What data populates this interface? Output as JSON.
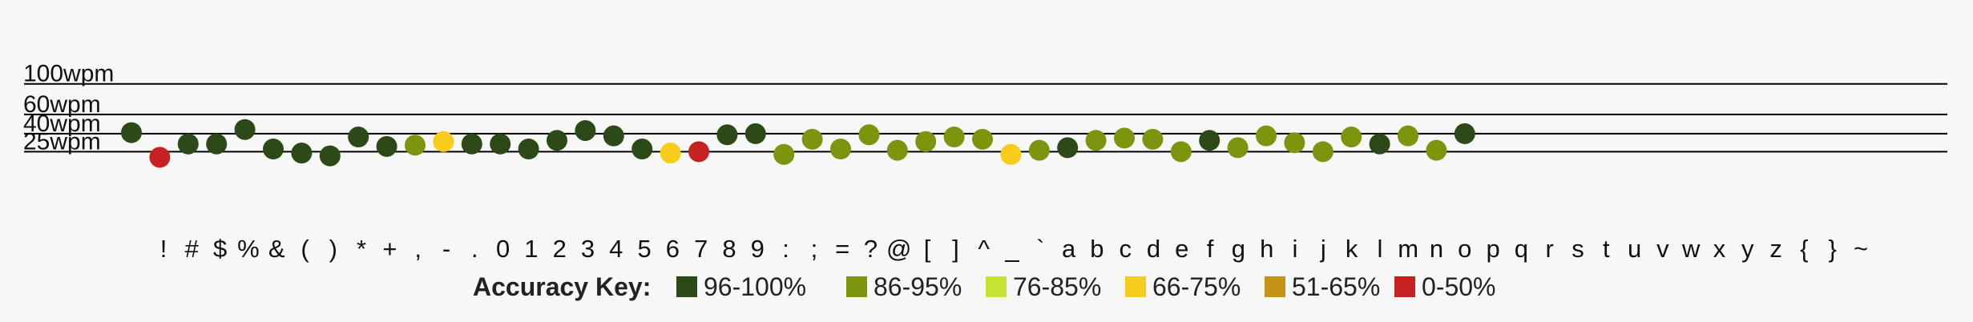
{
  "chart_data": {
    "type": "scatter",
    "title": "",
    "xlabel": "",
    "ylabel": "",
    "grid": true,
    "y_reference_lines": [
      {
        "value": 25,
        "label": "25wpm"
      },
      {
        "value": 40,
        "label": "40wpm"
      },
      {
        "value": 60,
        "label": "60wpm"
      },
      {
        "value": 100,
        "label": "100wpm"
      }
    ],
    "points": [
      {
        "char": "!",
        "wpm": 41,
        "accuracy_band": "96-100%"
      },
      {
        "char": "#",
        "wpm": 21,
        "accuracy_band": "0-50%"
      },
      {
        "char": "$",
        "wpm": 31,
        "accuracy_band": "96-100%"
      },
      {
        "char": "%",
        "wpm": 31,
        "accuracy_band": "96-100%"
      },
      {
        "char": "&",
        "wpm": 44,
        "accuracy_band": "96-100%"
      },
      {
        "char": "(",
        "wpm": 27,
        "accuracy_band": "96-100%"
      },
      {
        "char": ")",
        "wpm": 24,
        "accuracy_band": "96-100%"
      },
      {
        "char": "*",
        "wpm": 22,
        "accuracy_band": "96-100%"
      },
      {
        "char": "+",
        "wpm": 37,
        "accuracy_band": "96-100%"
      },
      {
        "char": ",",
        "wpm": 29,
        "accuracy_band": "96-100%"
      },
      {
        "char": "-",
        "wpm": 30,
        "accuracy_band": "86-95%"
      },
      {
        "char": ".",
        "wpm": 33,
        "accuracy_band": "66-75%"
      },
      {
        "char": "0",
        "wpm": 31,
        "accuracy_band": "96-100%"
      },
      {
        "char": "1",
        "wpm": 31,
        "accuracy_band": "96-100%"
      },
      {
        "char": "2",
        "wpm": 27,
        "accuracy_band": "96-100%"
      },
      {
        "char": "3",
        "wpm": 34,
        "accuracy_band": "96-100%"
      },
      {
        "char": "4",
        "wpm": 43,
        "accuracy_band": "96-100%"
      },
      {
        "char": "5",
        "wpm": 38,
        "accuracy_band": "96-100%"
      },
      {
        "char": "6",
        "wpm": 27,
        "accuracy_band": "96-100%"
      },
      {
        "char": "7",
        "wpm": 24,
        "accuracy_band": "66-75%"
      },
      {
        "char": "8",
        "wpm": 25,
        "accuracy_band": "0-50%"
      },
      {
        "char": "9",
        "wpm": 39,
        "accuracy_band": "96-100%"
      },
      {
        "char": ":",
        "wpm": 40,
        "accuracy_band": "96-100%"
      },
      {
        "char": ";",
        "wpm": 23,
        "accuracy_band": "86-95%"
      },
      {
        "char": "=",
        "wpm": 35,
        "accuracy_band": "86-95%"
      },
      {
        "char": "?",
        "wpm": 27,
        "accuracy_band": "86-95%"
      },
      {
        "char": "@",
        "wpm": 39,
        "accuracy_band": "86-95%"
      },
      {
        "char": "[",
        "wpm": 26,
        "accuracy_band": "86-95%"
      },
      {
        "char": "]",
        "wpm": 33,
        "accuracy_band": "86-95%"
      },
      {
        "char": "^",
        "wpm": 37,
        "accuracy_band": "86-95%"
      },
      {
        "char": "_",
        "wpm": 35,
        "accuracy_band": "86-95%"
      },
      {
        "char": "`",
        "wpm": 23,
        "accuracy_band": "66-75%"
      },
      {
        "char": "a",
        "wpm": 26,
        "accuracy_band": "86-95%"
      },
      {
        "char": "b",
        "wpm": 28,
        "accuracy_band": "96-100%"
      },
      {
        "char": "c",
        "wpm": 34,
        "accuracy_band": "86-95%"
      },
      {
        "char": "d",
        "wpm": 36,
        "accuracy_band": "86-95%"
      },
      {
        "char": "e",
        "wpm": 35,
        "accuracy_band": "86-95%"
      },
      {
        "char": "f",
        "wpm": 25,
        "accuracy_band": "86-95%"
      },
      {
        "char": "g",
        "wpm": 34,
        "accuracy_band": "96-100%"
      },
      {
        "char": "h",
        "wpm": 28,
        "accuracy_band": "86-95%"
      },
      {
        "char": "i",
        "wpm": 38,
        "accuracy_band": "86-95%"
      },
      {
        "char": "j",
        "wpm": 32,
        "accuracy_band": "86-95%"
      },
      {
        "char": "k",
        "wpm": 25,
        "accuracy_band": "86-95%"
      },
      {
        "char": "l",
        "wpm": 37,
        "accuracy_band": "86-95%"
      },
      {
        "char": "m",
        "wpm": 31,
        "accuracy_band": "96-100%"
      },
      {
        "char": "n",
        "wpm": 38,
        "accuracy_band": "86-95%"
      },
      {
        "char": "o",
        "wpm": 26,
        "accuracy_band": "86-95%"
      },
      {
        "char": "p",
        "wpm": 40,
        "accuracy_band": "96-100%"
      }
    ],
    "x_tick_labels": [
      "!",
      "#",
      "$",
      "%",
      "&",
      "(",
      ")",
      "*",
      "+",
      ",",
      "-",
      ".",
      "0",
      "1",
      "2",
      "3",
      "4",
      "5",
      "6",
      "7",
      "8",
      "9",
      ":",
      ";",
      "=",
      "?",
      "@",
      "[",
      "]",
      "^",
      "_",
      "`",
      "a",
      "b",
      "c",
      "d",
      "e",
      "f",
      "g",
      "h",
      "i",
      "j",
      "k",
      "l",
      "m",
      "n",
      "o",
      "p",
      "q",
      "r",
      "s",
      "t",
      "u",
      "v",
      "w",
      "x",
      "y",
      "z",
      "{",
      "}",
      "~"
    ],
    "accuracy_key": {
      "title": "Accuracy Key:",
      "items": [
        {
          "label": "96-100%",
          "color": "#2b4a17"
        },
        {
          "label": "86-95%",
          "color": "#7c950e"
        },
        {
          "label": "76-85%",
          "color": "#c7e235"
        },
        {
          "label": "66-75%",
          "color": "#f7cc1a"
        },
        {
          "label": "51-65%",
          "color": "#c79316"
        },
        {
          "label": "0-50%",
          "color": "#c52221"
        }
      ]
    }
  }
}
